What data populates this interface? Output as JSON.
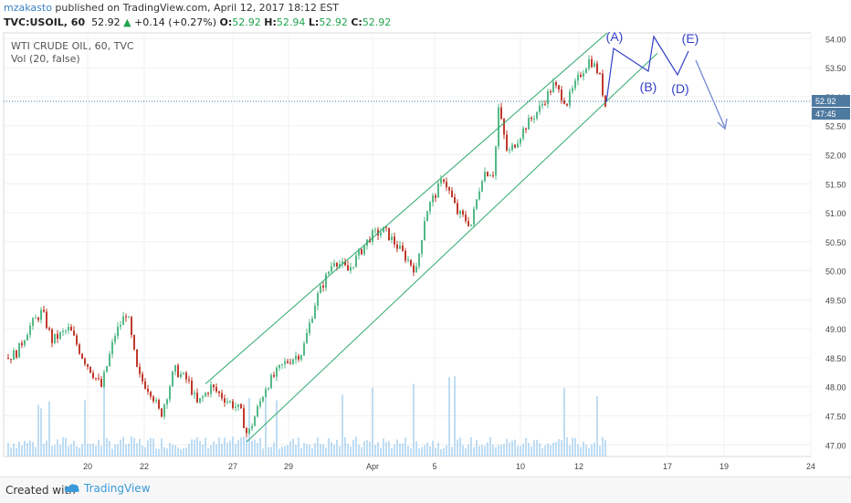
{
  "header": {
    "author": "mzakasto",
    "published_text": "published on TradingView.com, April 12, 2017 18:12 EST"
  },
  "ohlc": {
    "symbol": "TVC:USOIL, 60",
    "last": "52.92",
    "change": "+0.14 (+0.27%)",
    "o_label": "O:",
    "o": "52.92",
    "h_label": "H:",
    "h": "52.94",
    "l_label": "L:",
    "l": "52.92",
    "c_label": "C:",
    "c": "52.92"
  },
  "pane": {
    "title": "WTI CRUDE OIL, 60, TVC",
    "volume_label": "Vol (20, false)"
  },
  "price_badge": "52.92",
  "countdown_badge": "47:45",
  "footer": {
    "created_with": "Created with",
    "brand": "TradingView"
  },
  "colors": {
    "up": "#53b987",
    "down": "#c0392b",
    "channel": "#2eaa6e",
    "wave": "#3340c7",
    "arrow": "#7c8fd6",
    "volume": "#a9d2f0"
  },
  "chart_data": {
    "type": "line",
    "title": "WTI CRUDE OIL, 60, TVC",
    "xlabel": "",
    "ylabel": "",
    "x_ticks": [
      "20",
      "22",
      "27",
      "29",
      "Apr",
      "5",
      "10",
      "12",
      "17",
      "19",
      "24"
    ],
    "y_ticks": [
      "47.00",
      "47.50",
      "48.00",
      "48.50",
      "49.00",
      "49.50",
      "50.00",
      "50.50",
      "51.00",
      "51.50",
      "52.00",
      "52.50",
      "53.00",
      "53.50",
      "54.00"
    ],
    "ylim": [
      46.8,
      54.1
    ],
    "series": [
      {
        "points": [
          {
            "x": "17",
            "y": 48.5
          },
          {
            "x": "17",
            "y": 48.8
          },
          {
            "x": "20",
            "y": 48.9
          },
          {
            "x": "20",
            "y": 48.4
          },
          {
            "x": "21",
            "y": 49.2
          },
          {
            "x": "22",
            "y": 47.9
          },
          {
            "x": "22",
            "y": 47.5
          },
          {
            "x": "23",
            "y": 48.2
          },
          {
            "x": "24",
            "y": 47.8
          },
          {
            "x": "27",
            "y": 48.0
          },
          {
            "x": "27",
            "y": 47.2
          },
          {
            "x": "28",
            "y": 48.3
          },
          {
            "x": "29",
            "y": 48.6
          },
          {
            "x": "29",
            "y": 49.5
          },
          {
            "x": "30",
            "y": 50.2
          },
          {
            "x": "31",
            "y": 50.3
          },
          {
            "x": "Apr",
            "y": 50.6
          },
          {
            "x": "Apr 3",
            "y": 50.1
          },
          {
            "x": "Apr 4",
            "y": 51.2
          },
          {
            "x": "5",
            "y": 51.6
          },
          {
            "x": "6",
            "y": 50.9
          },
          {
            "x": "7",
            "y": 51.7
          },
          {
            "x": "7",
            "y": 52.6
          },
          {
            "x": "10",
            "y": 52.4
          },
          {
            "x": "11",
            "y": 52.9
          },
          {
            "x": "12",
            "y": 53.6
          },
          {
            "x": "12",
            "y": 52.9
          }
        ]
      }
    ],
    "channel": {
      "upper": [
        [
          47.9,
          48.1
        ],
        [
          54.1,
          54.1
        ]
      ],
      "lower": [
        [
          47.1,
          47.1
        ],
        [
          53.8,
          53.8
        ]
      ]
    },
    "annotations": [
      "(A)",
      "(B)",
      "(D)",
      "(E)"
    ],
    "last_price": 52.92,
    "grid": true
  }
}
